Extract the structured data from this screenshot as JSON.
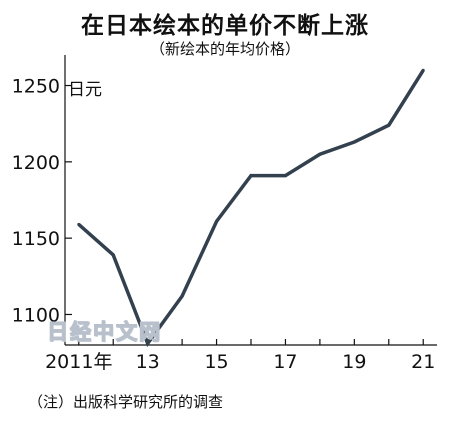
{
  "chart_data": {
    "type": "line",
    "title": "在日本绘本的单价不断上涨",
    "subtitle": "（新绘本的年均价格）",
    "unit_label": "日元",
    "x": [
      2011,
      2012,
      2013,
      2014,
      2015,
      2016,
      2017,
      2018,
      2019,
      2020,
      2021
    ],
    "x_tick_labels": [
      {
        "x": 2011,
        "label": "2011年"
      },
      {
        "x": 2013,
        "label": "13"
      },
      {
        "x": 2015,
        "label": "15"
      },
      {
        "x": 2017,
        "label": "17"
      },
      {
        "x": 2019,
        "label": "19"
      },
      {
        "x": 2021,
        "label": "21"
      }
    ],
    "series": [
      {
        "values": [
          1159,
          1139,
          1081,
          1112,
          1161,
          1191,
          1191,
          1205,
          1213,
          1224,
          1260
        ]
      }
    ],
    "yticks": [
      1100,
      1150,
      1200,
      1250
    ],
    "ylim": [
      1080,
      1270
    ],
    "xlim": [
      2010.6,
      2021.4
    ],
    "grid": false,
    "line_color": "#33404e"
  },
  "watermark": "日经中文网",
  "note": "（注）出版科学研究所的调查"
}
